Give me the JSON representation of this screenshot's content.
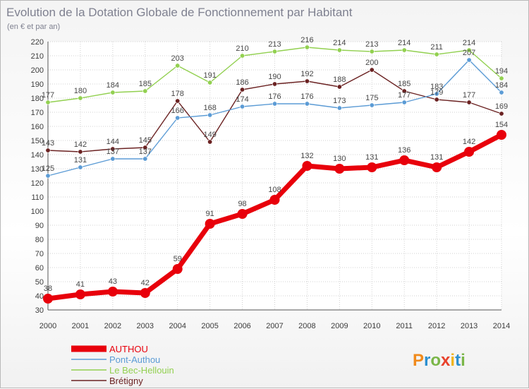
{
  "chart_data": {
    "type": "line",
    "title": "Evolution de la Dotation Globale de Fonctionnement par Habitant",
    "subtitle": "(en € et par an)",
    "xlabel": "",
    "ylabel": "",
    "categories": [
      "2000",
      "2001",
      "2002",
      "2003",
      "2004",
      "2005",
      "2006",
      "2007",
      "2008",
      "2009",
      "2010",
      "2011",
      "2012",
      "2013",
      "2014"
    ],
    "ylim": [
      30,
      220
    ],
    "yticks": [
      30,
      40,
      50,
      60,
      70,
      80,
      90,
      100,
      110,
      120,
      130,
      140,
      150,
      160,
      170,
      180,
      190,
      200,
      210,
      220
    ],
    "grid": true,
    "legend_position": "bottom-left",
    "series": [
      {
        "name": "AUTHOU",
        "color": "#e8000b",
        "values": [
          38,
          41,
          43,
          42,
          59,
          91,
          98,
          108,
          132,
          130,
          131,
          136,
          131,
          142,
          154
        ],
        "labels": [
          "38",
          "41",
          "43",
          "42",
          "59",
          "91",
          "98",
          "108",
          "132",
          "130",
          "131",
          "136",
          "131",
          "142",
          "154"
        ]
      },
      {
        "name": "Pont-Authou",
        "color": "#5b9bd5",
        "values": [
          125,
          131,
          137,
          137,
          166,
          168,
          174,
          176,
          176,
          173,
          175,
          177,
          183,
          207,
          184
        ],
        "labels": [
          "125",
          "131",
          "137",
          "137",
          "166",
          "168",
          "174",
          "176",
          "176",
          "173",
          "175",
          "177",
          "183",
          "207",
          "184"
        ]
      },
      {
        "name": "Le Bec-Hellouin",
        "color": "#92d050",
        "values": [
          177,
          180,
          184,
          185,
          203,
          191,
          210,
          213,
          216,
          214,
          213,
          214,
          211,
          214,
          194
        ],
        "labels": [
          "177",
          "180",
          "184",
          "185",
          "203",
          "191",
          "210",
          "213",
          "216",
          "214",
          "213",
          "214",
          "211",
          "214",
          "194"
        ]
      },
      {
        "name": "Brétigny",
        "color": "#6b2222",
        "values": [
          143,
          142,
          144,
          145,
          178,
          149,
          186,
          190,
          192,
          188,
          200,
          185,
          179,
          177,
          169
        ],
        "labels": [
          "143",
          "142",
          "144",
          "145",
          "178",
          "149",
          "186",
          "190",
          "192",
          "188",
          "200",
          "185",
          "179",
          "177",
          "169"
        ]
      }
    ]
  },
  "logo": {
    "text": "Proxiti"
  }
}
